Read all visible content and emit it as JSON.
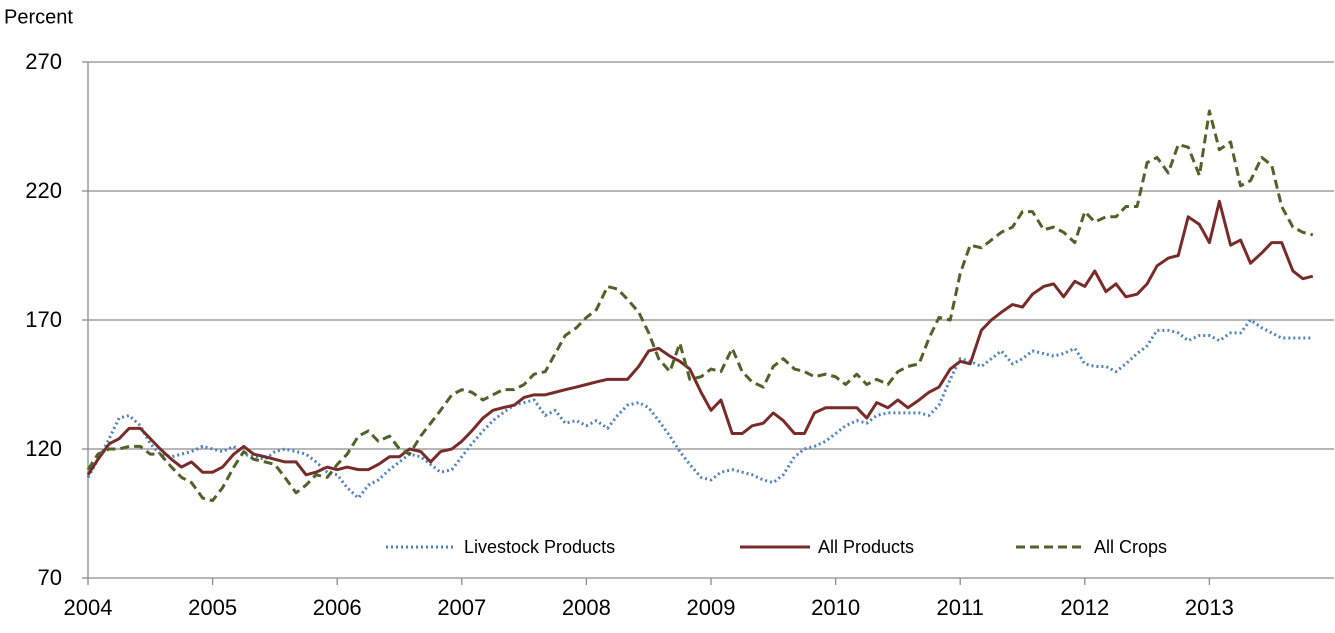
{
  "chart_data": {
    "type": "line",
    "y_label": "Percent",
    "xlim": [
      2004,
      2014
    ],
    "xticks": [
      2004,
      2005,
      2006,
      2007,
      2008,
      2009,
      2010,
      2011,
      2012,
      2013
    ],
    "ylim": [
      70,
      270
    ],
    "yticks": [
      70,
      120,
      170,
      220,
      270
    ],
    "grid": true,
    "legend": "lower center",
    "x": [
      2004,
      2004.08,
      2004.17,
      2004.25,
      2004.33,
      2004.42,
      2004.5,
      2004.58,
      2004.67,
      2004.75,
      2004.83,
      2004.92,
      2005,
      2005.08,
      2005.17,
      2005.25,
      2005.33,
      2005.42,
      2005.5,
      2005.58,
      2005.67,
      2005.75,
      2005.83,
      2005.92,
      2006,
      2006.08,
      2006.17,
      2006.25,
      2006.33,
      2006.42,
      2006.5,
      2006.58,
      2006.67,
      2006.75,
      2006.83,
      2006.92,
      2007,
      2007.08,
      2007.17,
      2007.25,
      2007.33,
      2007.42,
      2007.5,
      2007.58,
      2007.67,
      2007.75,
      2007.83,
      2007.92,
      2008,
      2008.08,
      2008.17,
      2008.25,
      2008.33,
      2008.42,
      2008.5,
      2008.58,
      2008.67,
      2008.75,
      2008.83,
      2008.92,
      2009,
      2009.08,
      2009.17,
      2009.25,
      2009.33,
      2009.42,
      2009.5,
      2009.58,
      2009.67,
      2009.75,
      2009.83,
      2009.92,
      2010,
      2010.08,
      2010.17,
      2010.25,
      2010.33,
      2010.42,
      2010.5,
      2010.58,
      2010.67,
      2010.75,
      2010.83,
      2010.92,
      2011,
      2011.08,
      2011.17,
      2011.25,
      2011.33,
      2011.42,
      2011.5,
      2011.58,
      2011.67,
      2011.75,
      2011.83,
      2011.92,
      2012,
      2012.08,
      2012.17,
      2012.25,
      2012.33,
      2012.42,
      2012.5,
      2012.58,
      2012.67,
      2012.75,
      2012.83,
      2012.92,
      2013,
      2013.08,
      2013.17,
      2013.25,
      2013.33,
      2013.42,
      2013.5,
      2013.58,
      2013.67,
      2013.75,
      2013.83
    ],
    "series": [
      {
        "name": "Livestock Products",
        "color": "#4f81bd",
        "style": "dotted",
        "values": [
          109,
          116,
          124,
          132,
          133,
          129,
          122,
          118,
          117,
          118,
          119,
          121,
          120,
          119,
          121,
          118,
          117,
          116,
          119,
          120,
          119,
          118,
          115,
          111,
          110,
          105,
          101,
          106,
          108,
          112,
          115,
          118,
          117,
          114,
          111,
          112,
          117,
          122,
          127,
          131,
          134,
          137,
          138,
          139,
          133,
          135,
          130,
          131,
          129,
          131,
          128,
          133,
          137,
          138,
          136,
          131,
          125,
          119,
          114,
          109,
          108,
          111,
          112,
          111,
          110,
          108,
          107,
          110,
          117,
          120,
          121,
          123,
          126,
          129,
          131,
          130,
          133,
          134,
          134,
          134,
          134,
          133,
          137,
          147,
          155,
          154,
          152,
          155,
          158,
          153,
          155,
          158,
          157,
          156,
          157,
          159,
          153,
          152,
          152,
          150,
          153,
          157,
          160,
          166,
          166,
          165,
          162,
          164,
          164,
          162,
          165,
          165,
          170,
          167,
          165,
          163,
          163,
          163,
          163
        ]
      },
      {
        "name": "All Products",
        "color": "#772c2a",
        "style": "solid",
        "values": [
          110,
          116,
          122,
          124,
          128,
          128,
          124,
          120,
          116,
          113,
          115,
          111,
          111,
          113,
          118,
          121,
          118,
          117,
          116,
          115,
          115,
          110,
          111,
          113,
          112,
          113,
          112,
          112,
          114,
          117,
          117,
          120,
          119,
          115,
          119,
          120,
          123,
          127,
          132,
          135,
          136,
          137,
          140,
          141,
          141,
          142,
          143,
          144,
          145,
          146,
          147,
          147,
          147,
          152,
          158,
          159,
          156,
          154,
          151,
          142,
          135,
          139,
          126,
          126,
          129,
          130,
          134,
          131,
          126,
          126,
          134,
          136,
          136,
          136,
          136,
          132,
          138,
          136,
          139,
          136,
          139,
          142,
          144,
          151,
          154,
          153,
          166,
          170,
          173,
          176,
          175,
          180,
          183,
          184,
          179,
          185,
          183,
          189,
          181,
          184,
          179,
          180,
          184,
          191,
          194,
          195,
          210,
          207,
          200,
          216,
          199,
          201,
          192,
          196,
          200,
          200,
          189,
          186,
          187
        ]
      },
      {
        "name": "All Crops",
        "color": "#4f6228",
        "style": "dashed",
        "values": [
          112,
          118,
          120,
          120,
          121,
          121,
          118,
          118,
          113,
          109,
          107,
          101,
          100,
          105,
          113,
          119,
          116,
          115,
          114,
          109,
          103,
          106,
          110,
          109,
          114,
          118,
          125,
          127,
          123,
          125,
          120,
          118,
          125,
          130,
          135,
          141,
          143,
          142,
          139,
          141,
          143,
          143,
          145,
          149,
          150,
          157,
          164,
          167,
          171,
          174,
          183,
          182,
          178,
          173,
          165,
          155,
          150,
          161,
          147,
          148,
          151,
          150,
          159,
          150,
          146,
          144,
          152,
          155,
          151,
          150,
          148,
          149,
          148,
          145,
          149,
          145,
          147,
          145,
          150,
          152,
          153,
          163,
          171,
          170,
          188,
          199,
          198,
          201,
          204,
          206,
          212,
          212,
          205,
          206,
          204,
          200,
          212,
          208,
          210,
          210,
          214,
          214,
          231,
          233,
          227,
          238,
          237,
          226,
          251,
          236,
          239,
          222,
          224,
          233,
          230,
          214,
          206,
          204,
          203
        ]
      }
    ]
  }
}
